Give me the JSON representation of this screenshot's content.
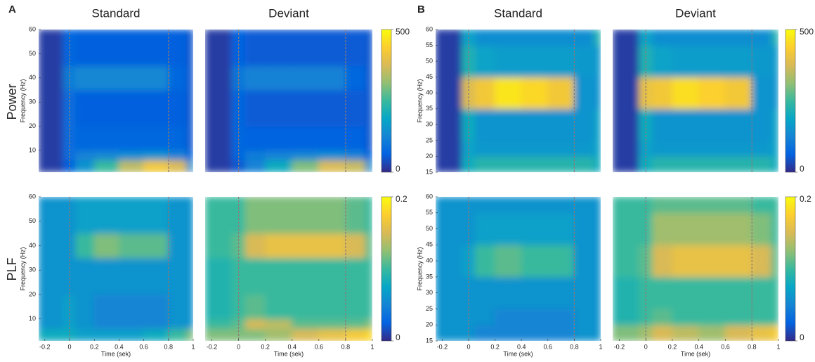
{
  "panel_labels": [
    "A",
    "B"
  ],
  "row_labels": [
    "Power",
    "PLF"
  ],
  "chart_data": [
    {
      "type": "heatmap",
      "title": "Standard",
      "ylabel": "Frequency (Hz)",
      "ylim": [
        1,
        60
      ],
      "yticks": [
        10,
        20,
        30,
        40,
        50,
        60
      ],
      "xlim": [
        -0.25,
        1.0
      ],
      "vlines": [
        0,
        0.8
      ],
      "zlim": [
        0,
        500
      ],
      "x_edges": [
        -0.25,
        -0.05,
        0.05,
        0.2,
        0.4,
        0.6,
        0.8,
        0.95,
        1.0
      ],
      "y_edges": [
        1,
        6,
        10,
        20,
        35,
        45,
        60
      ],
      "z": [
        [
          20,
          60,
          150,
          250,
          350,
          420,
          380,
          150
        ],
        [
          20,
          80,
          120,
          130,
          140,
          150,
          120,
          60
        ],
        [
          20,
          80,
          70,
          70,
          70,
          70,
          70,
          50
        ],
        [
          20,
          80,
          60,
          60,
          60,
          60,
          60,
          50
        ],
        [
          20,
          110,
          130,
          130,
          130,
          130,
          70,
          50
        ],
        [
          20,
          70,
          60,
          60,
          60,
          60,
          60,
          50
        ]
      ]
    },
    {
      "type": "heatmap",
      "title": "Deviant",
      "xlim": [
        -0.25,
        1.0
      ],
      "ylim": [
        1,
        60
      ],
      "vlines": [
        0,
        0.8
      ],
      "zlim": [
        0,
        500
      ],
      "colorbar_ticks": [
        0,
        500
      ],
      "x_edges": [
        -0.25,
        -0.05,
        0.05,
        0.2,
        0.4,
        0.6,
        0.8,
        0.95,
        1.0
      ],
      "y_edges": [
        1,
        6,
        10,
        20,
        35,
        45,
        60
      ],
      "z": [
        [
          20,
          50,
          120,
          200,
          300,
          380,
          360,
          150
        ],
        [
          20,
          70,
          110,
          120,
          130,
          140,
          120,
          60
        ],
        [
          20,
          70,
          65,
          65,
          65,
          65,
          65,
          50
        ],
        [
          20,
          70,
          55,
          55,
          55,
          55,
          55,
          50
        ],
        [
          20,
          100,
          120,
          120,
          120,
          120,
          70,
          50
        ],
        [
          20,
          65,
          55,
          55,
          55,
          55,
          55,
          50
        ]
      ]
    },
    {
      "type": "heatmap",
      "ylabel": "Frequency (Hz)",
      "xlabel": "Time (sek)",
      "ylim": [
        1,
        60
      ],
      "yticks": [
        10,
        20,
        30,
        40,
        50,
        60
      ],
      "xlim": [
        -0.25,
        1.0
      ],
      "xticks": [
        -0.2,
        0,
        0.2,
        0.4,
        0.6,
        0.8,
        1
      ],
      "vlines": [
        0,
        0.8
      ],
      "zlim": [
        0,
        0.2
      ],
      "x_edges": [
        -0.25,
        -0.05,
        0.05,
        0.2,
        0.4,
        0.6,
        0.8,
        0.95,
        1.0
      ],
      "y_edges": [
        1,
        6,
        10,
        20,
        35,
        45,
        60
      ],
      "z": [
        [
          0.08,
          0.08,
          0.07,
          0.07,
          0.07,
          0.08,
          0.1,
          0.12
        ],
        [
          0.06,
          0.07,
          0.06,
          0.05,
          0.05,
          0.05,
          0.06,
          0.06
        ],
        [
          0.06,
          0.07,
          0.06,
          0.05,
          0.05,
          0.05,
          0.06,
          0.06
        ],
        [
          0.06,
          0.06,
          0.06,
          0.06,
          0.06,
          0.06,
          0.06,
          0.06
        ],
        [
          0.06,
          0.06,
          0.1,
          0.12,
          0.11,
          0.11,
          0.06,
          0.06
        ],
        [
          0.06,
          0.06,
          0.07,
          0.07,
          0.07,
          0.07,
          0.06,
          0.06
        ]
      ]
    },
    {
      "type": "heatmap",
      "xlabel": "Time (sek)",
      "ylim": [
        1,
        60
      ],
      "xlim": [
        -0.25,
        1.0
      ],
      "xticks": [
        -0.2,
        0,
        0.2,
        0.4,
        0.6,
        0.8,
        1
      ],
      "vlines": [
        0,
        0.8
      ],
      "zlim": [
        0,
        0.2
      ],
      "colorbar_ticks": [
        0,
        0.2
      ],
      "x_edges": [
        -0.25,
        -0.05,
        0.05,
        0.2,
        0.4,
        0.6,
        0.8,
        0.95,
        1.0
      ],
      "y_edges": [
        1,
        6,
        10,
        20,
        35,
        45,
        60
      ],
      "z": [
        [
          0.12,
          0.12,
          0.12,
          0.13,
          0.15,
          0.16,
          0.17,
          0.18
        ],
        [
          0.1,
          0.11,
          0.15,
          0.14,
          0.11,
          0.11,
          0.11,
          0.12
        ],
        [
          0.09,
          0.1,
          0.11,
          0.1,
          0.1,
          0.1,
          0.1,
          0.1
        ],
        [
          0.09,
          0.1,
          0.1,
          0.1,
          0.1,
          0.1,
          0.1,
          0.1
        ],
        [
          0.1,
          0.11,
          0.15,
          0.16,
          0.16,
          0.16,
          0.15,
          0.11
        ],
        [
          0.1,
          0.1,
          0.12,
          0.12,
          0.12,
          0.12,
          0.11,
          0.1
        ]
      ]
    },
    {
      "type": "heatmap",
      "title": "Standard",
      "ylabel": "Frequency (Hz)",
      "ylim": [
        15,
        60
      ],
      "yticks": [
        15,
        20,
        25,
        30,
        35,
        40,
        45,
        50,
        55,
        60
      ],
      "xlim": [
        -0.25,
        1.0
      ],
      "vlines": [
        0,
        0.8
      ],
      "zlim": [
        0,
        500
      ],
      "x_edges": [
        -0.25,
        -0.05,
        0.05,
        0.2,
        0.4,
        0.6,
        0.8,
        0.95,
        1.0
      ],
      "y_edges": [
        15,
        20,
        25,
        35,
        45,
        55,
        60
      ],
      "z": [
        [
          20,
          200,
          230,
          230,
          230,
          230,
          230,
          200
        ],
        [
          20,
          180,
          160,
          160,
          160,
          160,
          160,
          180
        ],
        [
          20,
          200,
          150,
          150,
          150,
          150,
          150,
          180
        ],
        [
          20,
          380,
          420,
          470,
          450,
          420,
          150,
          150
        ],
        [
          20,
          220,
          180,
          170,
          170,
          170,
          160,
          160
        ],
        [
          20,
          180,
          140,
          140,
          140,
          140,
          140,
          220
        ]
      ]
    },
    {
      "type": "heatmap",
      "title": "Deviant",
      "ylim": [
        15,
        60
      ],
      "xlim": [
        -0.25,
        1.0
      ],
      "vlines": [
        0,
        0.8
      ],
      "zlim": [
        0,
        500
      ],
      "colorbar_ticks": [
        0,
        500
      ],
      "x_edges": [
        -0.25,
        -0.05,
        0.05,
        0.2,
        0.4,
        0.6,
        0.8,
        0.95,
        1.0
      ],
      "y_edges": [
        15,
        20,
        25,
        35,
        45,
        55,
        60
      ],
      "z": [
        [
          20,
          200,
          230,
          230,
          230,
          230,
          230,
          200
        ],
        [
          20,
          180,
          160,
          160,
          160,
          160,
          160,
          180
        ],
        [
          20,
          200,
          150,
          150,
          150,
          150,
          150,
          180
        ],
        [
          20,
          400,
          420,
          460,
          440,
          420,
          150,
          150
        ],
        [
          20,
          220,
          180,
          170,
          170,
          170,
          160,
          160
        ],
        [
          20,
          180,
          140,
          140,
          140,
          140,
          140,
          220
        ]
      ]
    },
    {
      "type": "heatmap",
      "ylabel": "Frequency (Hz)",
      "xlabel": "Time (sek)",
      "ylim": [
        15,
        60
      ],
      "yticks": [
        15,
        20,
        25,
        30,
        35,
        40,
        45,
        50,
        55,
        60
      ],
      "xlim": [
        -0.25,
        1.0
      ],
      "xticks": [
        -0.2,
        0,
        0.2,
        0.4,
        0.6,
        0.8,
        1
      ],
      "vlines": [
        0,
        0.8
      ],
      "zlim": [
        0,
        0.2
      ],
      "x_edges": [
        -0.25,
        -0.05,
        0.05,
        0.2,
        0.4,
        0.6,
        0.8,
        0.95,
        1.0
      ],
      "y_edges": [
        15,
        20,
        25,
        35,
        45,
        55,
        60
      ],
      "z": [
        [
          0.06,
          0.06,
          0.05,
          0.05,
          0.05,
          0.05,
          0.06,
          0.06
        ],
        [
          0.06,
          0.06,
          0.06,
          0.05,
          0.05,
          0.05,
          0.06,
          0.06
        ],
        [
          0.06,
          0.06,
          0.06,
          0.06,
          0.06,
          0.06,
          0.06,
          0.06
        ],
        [
          0.06,
          0.07,
          0.1,
          0.11,
          0.1,
          0.1,
          0.06,
          0.06
        ],
        [
          0.06,
          0.06,
          0.07,
          0.07,
          0.07,
          0.07,
          0.06,
          0.06
        ],
        [
          0.06,
          0.06,
          0.06,
          0.06,
          0.06,
          0.06,
          0.06,
          0.06
        ]
      ]
    },
    {
      "type": "heatmap",
      "xlabel": "Time (sek)",
      "ylim": [
        15,
        60
      ],
      "xlim": [
        -0.25,
        1.0
      ],
      "xticks": [
        -0.2,
        0,
        0.2,
        0.4,
        0.6,
        0.8,
        1
      ],
      "vlines": [
        0,
        0.8
      ],
      "zlim": [
        0,
        0.2
      ],
      "colorbar_ticks": [
        0,
        0.2
      ],
      "x_edges": [
        -0.25,
        -0.05,
        0.05,
        0.2,
        0.4,
        0.6,
        0.8,
        0.95,
        1.0
      ],
      "y_edges": [
        15,
        20,
        25,
        35,
        45,
        55,
        60
      ],
      "z": [
        [
          0.12,
          0.13,
          0.15,
          0.14,
          0.13,
          0.15,
          0.16,
          0.17
        ],
        [
          0.09,
          0.1,
          0.11,
          0.1,
          0.1,
          0.1,
          0.1,
          0.1
        ],
        [
          0.09,
          0.1,
          0.1,
          0.1,
          0.1,
          0.1,
          0.1,
          0.1
        ],
        [
          0.1,
          0.11,
          0.15,
          0.16,
          0.16,
          0.16,
          0.15,
          0.11
        ],
        [
          0.1,
          0.1,
          0.13,
          0.13,
          0.13,
          0.13,
          0.12,
          0.1
        ],
        [
          0.1,
          0.1,
          0.11,
          0.11,
          0.11,
          0.11,
          0.1,
          0.1
        ]
      ]
    }
  ]
}
